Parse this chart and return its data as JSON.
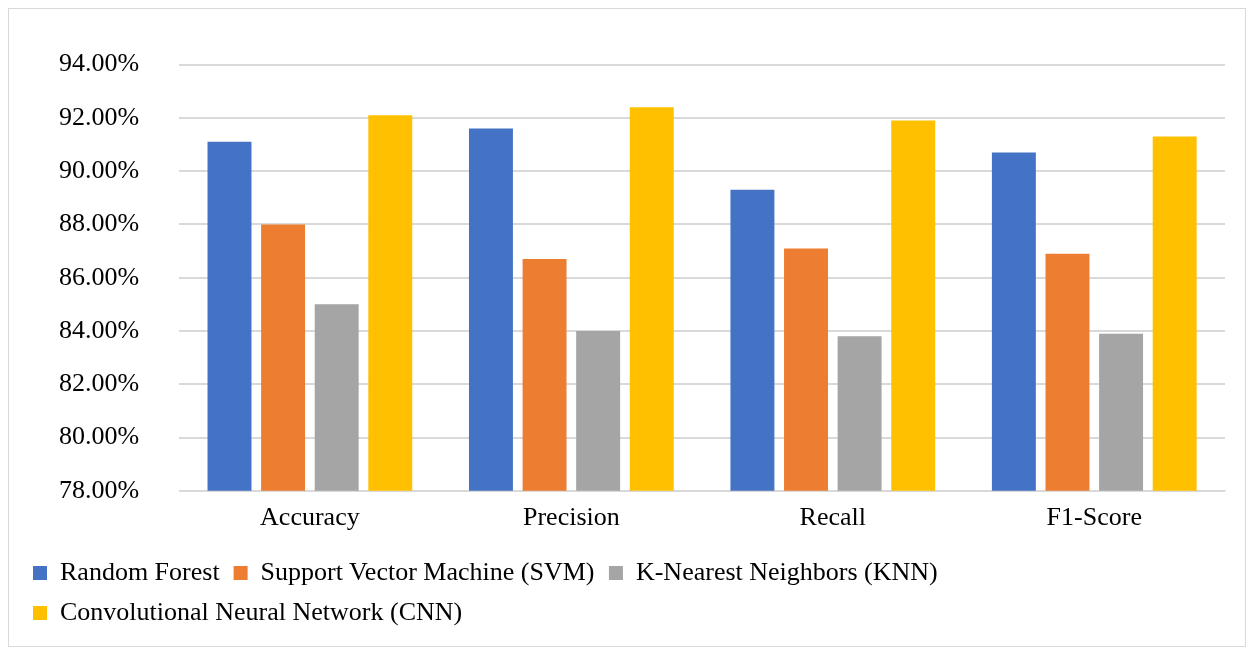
{
  "chart_data": {
    "type": "bar",
    "categories": [
      "Accuracy",
      "Precision",
      "Recall",
      "F1-Score"
    ],
    "series": [
      {
        "name": "Random Forest",
        "color": "#4472c4",
        "values": [
          91.1,
          91.6,
          89.3,
          90.7
        ]
      },
      {
        "name": "Support Vector Machine (SVM)",
        "color": "#ed7d31",
        "values": [
          88.0,
          86.7,
          87.1,
          86.9
        ]
      },
      {
        "name": "K-Nearest Neighbors (KNN)",
        "color": "#a5a5a5",
        "values": [
          85.0,
          84.0,
          83.8,
          83.9
        ]
      },
      {
        "name": "Convolutional Neural Network (CNN)",
        "color": "#ffc000",
        "values": [
          92.1,
          92.4,
          91.9,
          91.3
        ]
      }
    ],
    "ylim": [
      78,
      94
    ],
    "yticks": [
      {
        "value": 78,
        "label": "78.00%"
      },
      {
        "value": 80,
        "label": "80.00%"
      },
      {
        "value": 82,
        "label": "82.00%"
      },
      {
        "value": 84,
        "label": "84.00%"
      },
      {
        "value": 86,
        "label": "86.00%"
      },
      {
        "value": 88,
        "label": "88.00%"
      },
      {
        "value": 90,
        "label": "90.00%"
      },
      {
        "value": 92,
        "label": "92.00%"
      },
      {
        "value": 94,
        "label": "94.00%"
      }
    ],
    "grid": "y",
    "legend": "bottom"
  }
}
